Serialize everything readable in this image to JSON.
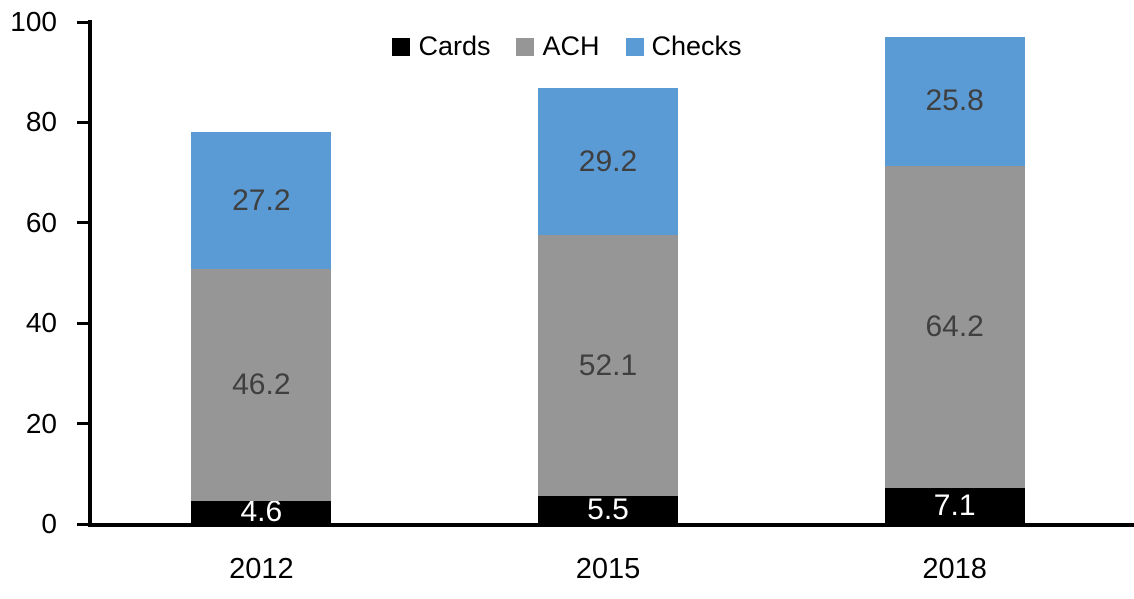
{
  "chart_data": {
    "type": "bar",
    "stacked": true,
    "categories": [
      "2012",
      "2015",
      "2018"
    ],
    "series": [
      {
        "name": "Cards",
        "color": "#000000",
        "label_color": "#ffffff",
        "values": [
          4.6,
          5.5,
          7.1
        ]
      },
      {
        "name": "ACH",
        "color": "#969696",
        "label_color": "#3f3f3f",
        "values": [
          46.2,
          52.1,
          64.2
        ]
      },
      {
        "name": "Checks",
        "color": "#5b9bd5",
        "label_color": "#3f3f3f",
        "values": [
          27.2,
          29.2,
          25.8
        ]
      }
    ],
    "totals": [
      78.0,
      86.8,
      97.1
    ],
    "xlabel": "",
    "ylabel": "",
    "ylim": [
      0,
      100
    ],
    "yticks": [
      0,
      20,
      40,
      60,
      80,
      100
    ],
    "grid": false,
    "legend_position": "top-center",
    "axis_color": "#000000",
    "background_color": "#ffffff"
  }
}
